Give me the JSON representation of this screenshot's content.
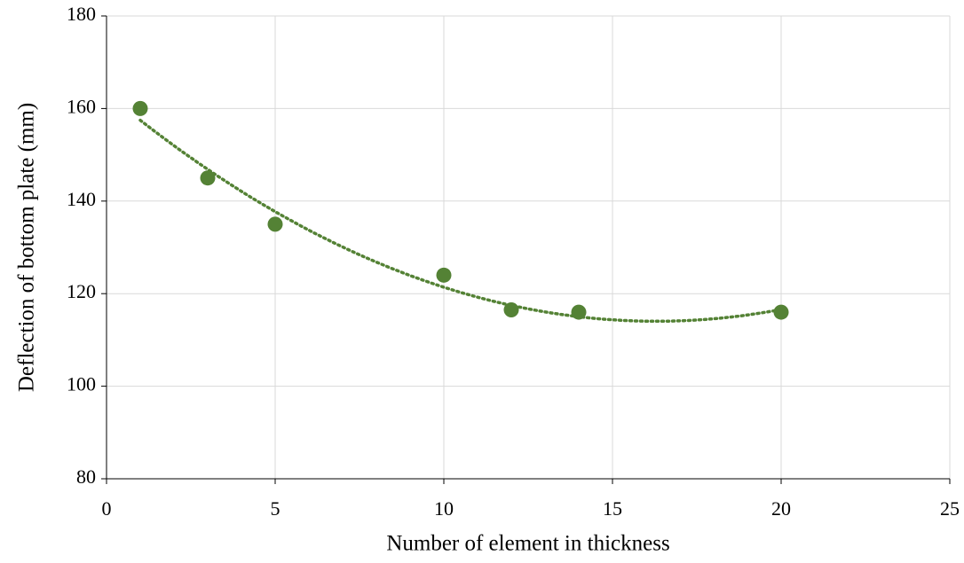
{
  "chart_data": {
    "type": "scatter",
    "x_label": "Number of element in thickness",
    "y_label": "Deflection of bottom plate (mm)",
    "x": [
      1,
      3,
      5,
      10,
      12,
      14,
      20
    ],
    "series": [
      {
        "color": "#548235",
        "values": [
          160,
          145,
          135,
          124,
          116.5,
          116,
          116
        ]
      }
    ],
    "trendline": "polynomial",
    "trendline_order": 2,
    "xlim": [
      0,
      25
    ],
    "xticks": [
      0,
      5,
      10,
      15,
      20,
      25
    ],
    "ylim": [
      80,
      180
    ],
    "yticks": [
      80,
      100,
      120,
      140,
      160,
      180
    ],
    "grid": true
  }
}
